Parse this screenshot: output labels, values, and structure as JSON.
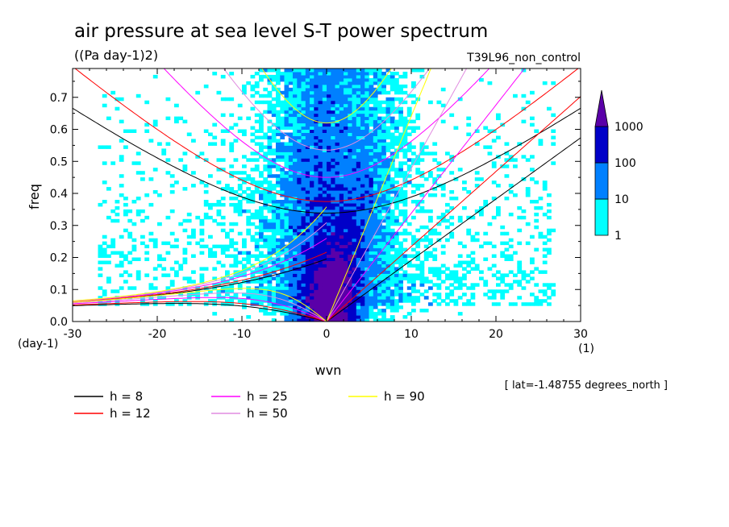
{
  "chart_data": {
    "type": "heatmap",
    "title": "air pressure at sea level S-T power spectrum",
    "subtitle": "((Pa day-1)2)",
    "experiment": "T39L96_non_control",
    "xlabel": "wvn",
    "ylabel": "freq",
    "x_unit": "(1)",
    "y_unit": "(day-1)",
    "xlim": [
      -30,
      30
    ],
    "ylim": [
      0,
      0.79
    ],
    "x_ticks": [
      -30,
      -20,
      -10,
      0,
      10,
      20,
      30
    ],
    "x_tick_labels": [
      "-30",
      "-20",
      "-10",
      "0",
      "10",
      "20",
      "30"
    ],
    "y_ticks": [
      0,
      0.1,
      0.2,
      0.3,
      0.4,
      0.5,
      0.6,
      0.7
    ],
    "y_tick_labels": [
      "0.0",
      "0.1",
      "0.2",
      "0.3",
      "0.4",
      "0.5",
      "0.6",
      "0.7"
    ],
    "latitude_note": "[ lat=-1.48755 degrees_north ]",
    "colorbar": {
      "levels": [
        1,
        10,
        100,
        1000
      ],
      "level_labels": [
        "1",
        "10",
        "100",
        "1000"
      ],
      "colors": [
        "#00ffff",
        "#0080ff",
        "#0000c8",
        "#5a00a8"
      ]
    },
    "dispersion_curves": [
      {
        "label": "h =  8",
        "h": 8,
        "color": "#000000"
      },
      {
        "label": "h = 12",
        "h": 12,
        "color": "#ff0000"
      },
      {
        "label": "h = 25",
        "h": 25,
        "color": "#ff00ff"
      },
      {
        "label": "h = 50",
        "h": 50,
        "color": "#e08ce0"
      },
      {
        "label": "h = 90",
        "h": 90,
        "color": "#ffff00"
      }
    ]
  }
}
